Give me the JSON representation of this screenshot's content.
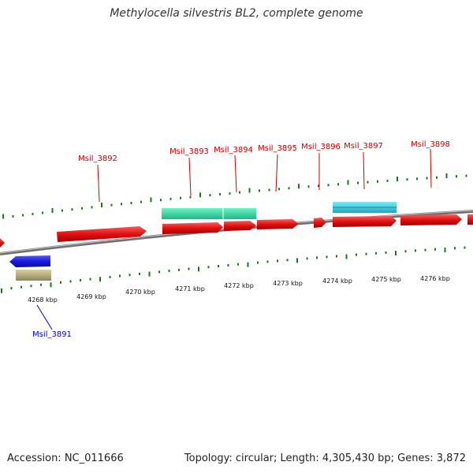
{
  "title": "Methylocella silvestris BL2, complete genome",
  "footer": {
    "accession": "Accession: NC_011666",
    "summary": "Topology: circular; Length: 4,305,430 bp; Genes: 3,872"
  },
  "scale_labels": [
    "4268 kbp",
    "4269 kbp",
    "4270 kbp",
    "4271 kbp",
    "4272 kbp",
    "4273 kbp",
    "4274 kbp",
    "4275 kbp",
    "4276 kbp"
  ],
  "gene_labels": {
    "upper": [
      "Msil_3892",
      "Msil_3893",
      "Msil_3894",
      "Msil_3895",
      "Msil_3896",
      "Msil_3897",
      "Msil_3898"
    ],
    "lower": [
      "Msil_3891"
    ]
  },
  "colors": {
    "forward_gene": "#e01010",
    "reverse_gene": "#1a1adf",
    "rna_feature": "#b8b07a",
    "cds_feature_green": "#2fe0a8",
    "cds_feature_cyan": "#2ad4ea",
    "tick": "#1a7a1a",
    "backbone": "#888888",
    "label_upper": "#cc0000",
    "label_lower": "#0000cc"
  }
}
